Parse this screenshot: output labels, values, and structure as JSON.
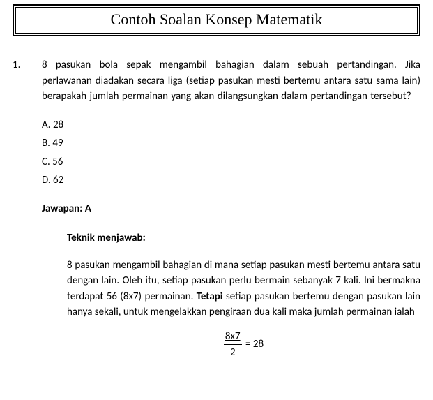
{
  "title": "Contoh Soalan Konsep Matematik",
  "question": {
    "number": "1.",
    "text": "8 pasukan bola sepak mengambil bahagian dalam sebuah pertandingan. Jika perlawanan diadakan secara liga (setiap pasukan mesti bertemu antara satu sama lain) berapakah jumlah permainan yang akan dilangsungkan dalam pertandingan tersebut?",
    "options": {
      "a": "A. 28",
      "b": "B. 49",
      "c": "C. 56",
      "d": "D. 62"
    },
    "answer_label": "Jawapan: A",
    "technique_label": "Teknik menjawab:",
    "explanation_pre": "8 pasukan mengambil bahagian di mana setiap pasukan mesti bertemu antara satu dengan lain. Oleh itu, setiap pasukan perlu bermain sebanyak 7 kali. Ini bermakna terdapat 56 (8x7) permainan. ",
    "explanation_bold": "Tetapi",
    "explanation_post": " setiap pasukan bertemu dengan pasukan lain hanya sekali, untuk mengelakkan pengiraan    dua kali maka jumlah permainan ialah",
    "equation": {
      "numerator": "8x7",
      "denominator": "2",
      "rhs": " = 28"
    }
  },
  "style": {
    "body_font_size": 15,
    "title_font_size": 22,
    "text_color": "#000000",
    "background": "#ffffff"
  }
}
